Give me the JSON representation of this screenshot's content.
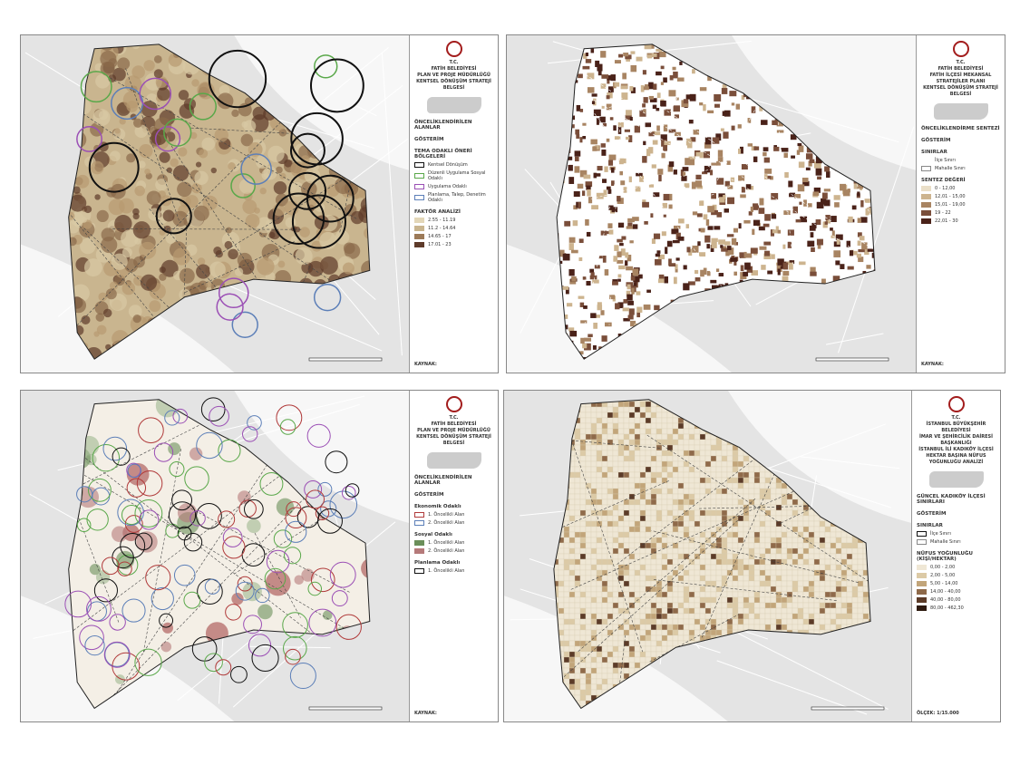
{
  "panels": [
    {
      "style": "dense",
      "header": [
        "T.C.",
        "FATİH BELEDİYESİ",
        "PLAN VE PROJE MÜDÜRLÜĞÜ",
        "KENTSEL DÖNÜŞÜM STRATEJİ BELGESİ"
      ],
      "sections": [
        {
          "title": "ÖNCELİKLENDİRİLEN ALANLAR"
        },
        {
          "title": "GÖSTERİM"
        },
        {
          "title": "TEMA ODAKLI ÖNERİ BÖLGELERİ",
          "items": [
            {
              "label": "Kentsel Dönüşüm",
              "color": "#111111",
              "ring": true
            },
            {
              "label": "Düzenli Uygulama Sosyal Odaklı",
              "color": "#5aa84a",
              "ring": true
            },
            {
              "label": "Uygulama Odaklı",
              "color": "#9b4fb5",
              "ring": true
            },
            {
              "label": "Planlama, Talep, Denetim Odaklı",
              "color": "#5c7fb8",
              "ring": true
            }
          ]
        },
        {
          "title": "FAKTÖR ANALİZİ",
          "items": [
            {
              "label": "2.55 - 11.19",
              "color": "#e3d7b8"
            },
            {
              "label": "11.2 - 14.64",
              "color": "#c9b58f"
            },
            {
              "label": "14.65 - 17",
              "color": "#9c7a58"
            },
            {
              "label": "17.01 - 23",
              "color": "#5e3b2a"
            }
          ]
        }
      ],
      "source": "KAYNAK:"
    },
    {
      "style": "blocks",
      "header": [
        "T.C.",
        "FATİH BELEDİYESİ",
        "FATİH İLÇESİ MEKANSAL STRATEJİLER PLANI",
        "KENTSEL DÖNÜŞÜM STRATEJİ BELGESİ"
      ],
      "sections": [
        {
          "title": "ÖNCELİKLENDİRME SENTEZİ"
        },
        {
          "title": "GÖSTERİM"
        },
        {
          "title": "SINIRLAR",
          "items": [
            {
              "label": "İlçe Sınırı",
              "color": "#ffffff",
              "ring": true
            },
            {
              "label": "Mahalle Sınırı",
              "color": "#888888",
              "ring": true
            }
          ]
        },
        {
          "title": "SENTEZ DEĞERİ",
          "items": [
            {
              "label": "0 - 12,00",
              "color": "#eadfc8"
            },
            {
              "label": "12,01 - 15,00",
              "color": "#cdb48f"
            },
            {
              "label": "15,01 - 19,00",
              "color": "#a88462"
            },
            {
              "label": "19 - 22",
              "color": "#7a4e3a"
            },
            {
              "label": "22,01 - 30",
              "color": "#4a2219"
            }
          ]
        }
      ],
      "source": "KAYNAK:"
    },
    {
      "style": "circles",
      "header": [
        "T.C.",
        "FATİH BELEDİYESİ",
        "PLAN VE PROJE MÜDÜRLÜĞÜ",
        "KENTSEL DÖNÜŞÜM STRATEJİ BELGESİ"
      ],
      "sections": [
        {
          "title": "ÖNCELİKLENDİRİLEN ALANLAR"
        },
        {
          "title": "GÖSTERİM"
        },
        {
          "title": "Ekonomik Odaklı",
          "items": [
            {
              "label": "1. Öncelikli Alan",
              "color": "#b03a3a",
              "ring": true
            },
            {
              "label": "2. Öncelikli Alan",
              "color": "#5c7fb8",
              "ring": true
            }
          ]
        },
        {
          "title": "Sosyal Odaklı",
          "items": [
            {
              "label": "1. Öncelikli Alan",
              "color": "#6b8f5a"
            },
            {
              "label": "2. Öncelikli Alan",
              "color": "#b57a7a"
            }
          ]
        },
        {
          "title": "Planlama Odaklı",
          "items": [
            {
              "label": "1. Öncelikli Alan",
              "color": "#111111",
              "ring": true
            }
          ]
        }
      ],
      "source": "KAYNAK:"
    },
    {
      "style": "grid",
      "header": [
        "T.C.",
        "İSTANBUL BÜYÜKŞEHİR BELEDİYESİ",
        "İMAR VE ŞEHİRCİLİK DAİRESİ BAŞKANLIĞI",
        "İSTANBUL İLİ KADIKÖY İLÇESİ HEKTAR BAŞINA NÜFUS YOĞUNLUĞU ANALİZİ"
      ],
      "sections": [
        {
          "title": "GÜNCEL KADIKÖY İLÇESİ SINIRLARI"
        },
        {
          "title": "GÖSTERİM"
        },
        {
          "title": "SINIRLAR",
          "items": [
            {
              "label": "İlçe Sınırı",
              "color": "#111111",
              "ring": true
            },
            {
              "label": "Mahalle Sınırı",
              "color": "#888888",
              "ring": true
            }
          ]
        },
        {
          "title": "NÜFUS YOĞUNLUĞU (KİŞİ/HEKTAR)",
          "items": [
            {
              "label": "0,00 - 2,00",
              "color": "#efe7d5"
            },
            {
              "label": "2,00 - 5,00",
              "color": "#dccaa6"
            },
            {
              "label": "5,00 - 14,00",
              "color": "#c2a57a"
            },
            {
              "label": "14,00 - 40,00",
              "color": "#8f6a4a"
            },
            {
              "label": "40,00 - 80,00",
              "color": "#5c3b28"
            },
            {
              "label": "80,00 - 462,30",
              "color": "#2e1a10"
            }
          ]
        }
      ],
      "source": "ÖLÇEK: 1/15.000"
    }
  ]
}
